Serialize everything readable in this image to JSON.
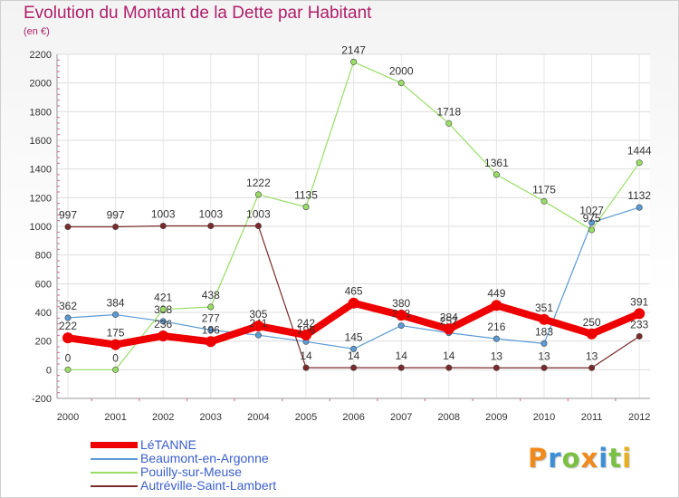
{
  "title": "Evolution du Montant de la Dette par Habitant",
  "subtitle": "(en €)",
  "logo": {
    "text": "Proxiti",
    "letter_colors": [
      "#f08a1c",
      "#3c8fd6",
      "#7ac143",
      "#f08a1c",
      "#3c8fd6",
      "#7ac143",
      "#e6b01e"
    ]
  },
  "chart_data": {
    "type": "line",
    "categories": [
      "2000",
      "2001",
      "2002",
      "2003",
      "2004",
      "2005",
      "2006",
      "2007",
      "2008",
      "2009",
      "2010",
      "2011",
      "2012"
    ],
    "ylim": [
      -200,
      2200
    ],
    "yticks": [
      -200,
      0,
      200,
      400,
      600,
      800,
      1000,
      1200,
      1400,
      1600,
      1800,
      2000,
      2200
    ],
    "grid": true,
    "legend_position": "bottom-left",
    "series": [
      {
        "name": "Beaumont-en-Argonne",
        "color": "#5b9bd5",
        "width": 1.2,
        "values": [
          362,
          384,
          338,
          277,
          241,
          196,
          145,
          308,
          257,
          216,
          183,
          1027,
          1132
        ],
        "labels": [
          "362",
          "384",
          "338",
          "277",
          "241",
          "196",
          "145",
          "308",
          "257",
          "216",
          "183",
          "1027",
          "1132"
        ]
      },
      {
        "name": "Pouilly-sur-Meuse",
        "color": "#99dd66",
        "width": 1.2,
        "values": [
          0,
          0,
          421,
          438,
          1222,
          1135,
          2147,
          2000,
          1718,
          1361,
          1175,
          975,
          1444
        ],
        "labels": [
          "0",
          "0",
          "421",
          "438",
          "1222",
          "1135",
          "2147",
          "2000",
          "1718",
          "1361",
          "1175",
          "975",
          "1444"
        ]
      },
      {
        "name": "Autréville-Saint-Lambert",
        "color": "#7a2a2a",
        "width": 1.2,
        "values": [
          997,
          997,
          1003,
          1003,
          1003,
          14,
          14,
          14,
          14,
          13,
          13,
          13,
          233
        ],
        "labels": [
          "997",
          "997",
          "1003",
          "1003",
          "1003",
          "14",
          "14",
          "14",
          "14",
          "13",
          "13",
          "13",
          "233"
        ]
      },
      {
        "name": "LéTANNE",
        "color": "#ee0000",
        "width": 8,
        "values": [
          222,
          175,
          236,
          196,
          305,
          242,
          465,
          380,
          284,
          449,
          351,
          250,
          391
        ],
        "labels": [
          "222",
          "175",
          "236",
          "196",
          "305",
          "242",
          "465",
          "380",
          "284",
          "449",
          "351",
          "250",
          "391"
        ]
      }
    ],
    "legend_order": [
      "LéTANNE",
      "Beaumont-en-Argonne",
      "Pouilly-sur-Meuse",
      "Autréville-Saint-Lambert"
    ]
  }
}
